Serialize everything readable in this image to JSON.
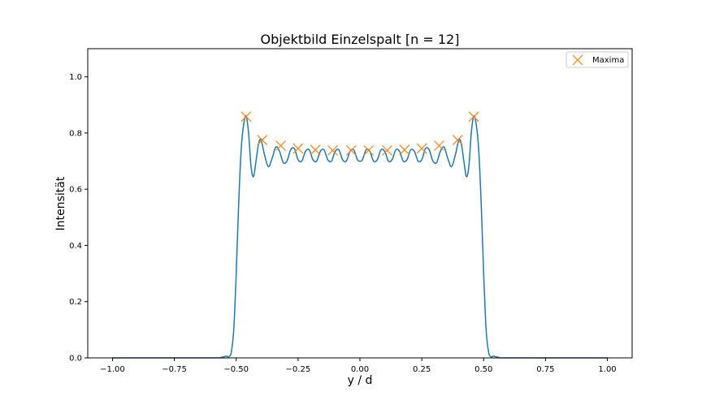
{
  "chart_data": {
    "type": "line",
    "title": "Objektbild Einzelspalt [n = 12]",
    "xlabel": "y / d",
    "ylabel": "Intensität",
    "xlim": [
      -1.1,
      1.1
    ],
    "ylim": [
      0,
      1.1
    ],
    "xticks": [
      -1.0,
      -0.75,
      -0.5,
      -0.25,
      0.0,
      0.25,
      0.5,
      0.75,
      1.0
    ],
    "xtick_labels": [
      "−1.00",
      "−0.75",
      "−0.50",
      "−0.25",
      "0.00",
      "0.25",
      "0.50",
      "0.75",
      "1.00"
    ],
    "yticks": [
      0.0,
      0.2,
      0.4,
      0.6,
      0.8,
      1.0
    ],
    "ytick_labels": [
      "0.0",
      "0.2",
      "0.4",
      "0.6",
      "0.8",
      "1.0"
    ],
    "grid": false,
    "legend_position": "top-right",
    "series": [
      {
        "kind": "line",
        "color": "#1f77b4",
        "x": [
          -1.0,
          -0.6,
          -0.56,
          -0.54,
          -0.53,
          -0.52,
          -0.51,
          -0.5,
          -0.49,
          -0.48,
          -0.47,
          -0.46,
          -0.45,
          -0.44,
          -0.43,
          -0.42,
          -0.41,
          -0.4,
          -0.385,
          -0.37,
          -0.355,
          -0.34,
          -0.325,
          -0.31,
          -0.295,
          -0.28,
          -0.265,
          -0.25,
          -0.235,
          -0.22,
          -0.205,
          -0.19,
          -0.175,
          -0.16,
          -0.145,
          -0.13,
          -0.115,
          -0.1,
          -0.085,
          -0.07,
          -0.055,
          -0.04,
          -0.025,
          -0.01,
          0.0,
          0.01,
          0.025,
          0.04,
          0.055,
          0.07,
          0.085,
          0.1,
          0.115,
          0.13,
          0.145,
          0.16,
          0.175,
          0.19,
          0.205,
          0.22,
          0.235,
          0.25,
          0.265,
          0.28,
          0.295,
          0.31,
          0.325,
          0.34,
          0.355,
          0.37,
          0.385,
          0.4,
          0.41,
          0.42,
          0.43,
          0.44,
          0.45,
          0.46,
          0.47,
          0.48,
          0.49,
          0.5,
          0.51,
          0.52,
          0.53,
          0.54,
          0.56,
          0.6,
          1.0
        ],
        "y": [
          0.0,
          0.0,
          0.002,
          0.006,
          0.004,
          0.02,
          0.1,
          0.3,
          0.55,
          0.74,
          0.83,
          0.86,
          0.8,
          0.68,
          0.645,
          0.7,
          0.76,
          0.775,
          0.72,
          0.68,
          0.71,
          0.75,
          0.735,
          0.695,
          0.7,
          0.74,
          0.745,
          0.705,
          0.7,
          0.735,
          0.74,
          0.705,
          0.7,
          0.735,
          0.74,
          0.705,
          0.7,
          0.735,
          0.74,
          0.705,
          0.7,
          0.735,
          0.74,
          0.705,
          0.7,
          0.705,
          0.74,
          0.735,
          0.7,
          0.705,
          0.74,
          0.735,
          0.7,
          0.705,
          0.74,
          0.735,
          0.7,
          0.705,
          0.74,
          0.735,
          0.7,
          0.705,
          0.745,
          0.74,
          0.7,
          0.695,
          0.735,
          0.75,
          0.71,
          0.68,
          0.72,
          0.775,
          0.76,
          0.7,
          0.645,
          0.68,
          0.8,
          0.86,
          0.83,
          0.74,
          0.55,
          0.3,
          0.1,
          0.02,
          0.004,
          0.006,
          0.002,
          0.0,
          0.0
        ]
      },
      {
        "kind": "scatter",
        "name": "Maxima",
        "marker": "x",
        "color": "#ff7f0e",
        "x": [
          -0.46,
          -0.395,
          -0.32,
          -0.25,
          -0.18,
          -0.11,
          -0.035,
          0.035,
          0.11,
          0.18,
          0.25,
          0.32,
          0.395,
          0.46
        ],
        "y": [
          0.858,
          0.775,
          0.755,
          0.745,
          0.74,
          0.738,
          0.738,
          0.738,
          0.738,
          0.74,
          0.745,
          0.755,
          0.775,
          0.858
        ]
      }
    ]
  }
}
